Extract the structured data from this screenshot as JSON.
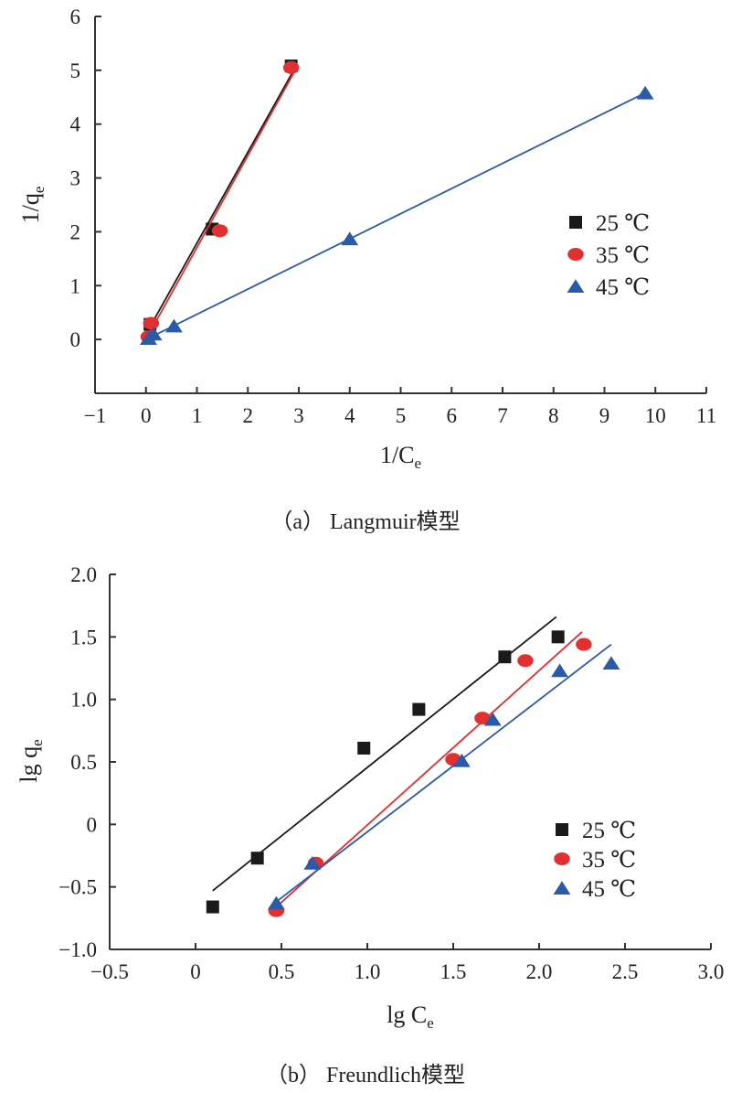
{
  "chart_data": [
    {
      "type": "scatter",
      "caption": "（a） Langmuir模型",
      "xlabel": "1/C",
      "xlabel_sub": "e",
      "ylabel": "1/q",
      "ylabel_sub": "e",
      "xlim": [
        -1,
        11
      ],
      "ylim": [
        -1,
        6
      ],
      "xticks": [
        -1,
        0,
        1,
        2,
        3,
        4,
        5,
        6,
        7,
        8,
        9,
        10,
        11
      ],
      "xtick_labels": [
        "−1",
        "0",
        "1",
        "2",
        "3",
        "4",
        "5",
        "6",
        "7",
        "8",
        "9",
        "10",
        "11"
      ],
      "yticks": [
        0,
        1,
        2,
        3,
        4,
        5,
        6
      ],
      "ytick_labels": [
        "0",
        "1",
        "2",
        "3",
        "4",
        "5",
        "6"
      ],
      "legend_position": "right",
      "grid": false,
      "series": [
        {
          "name": "25 ℃",
          "marker": "square",
          "color": "#1a1a1a",
          "x": [
            0.08,
            1.3,
            2.85
          ],
          "y": [
            0.28,
            2.05,
            5.08
          ],
          "fit": [
            [
              0,
              0.1
            ],
            [
              2.9,
              5.0
            ]
          ]
        },
        {
          "name": "35 ℃",
          "marker": "circle",
          "color": "#e03030",
          "x": [
            0.05,
            0.1,
            1.45,
            2.85
          ],
          "y": [
            0.05,
            0.3,
            2.02,
            5.05
          ],
          "fit": [
            [
              0,
              0.0
            ],
            [
              2.9,
              4.95
            ]
          ]
        },
        {
          "name": "45 ℃",
          "marker": "triangle",
          "color": "#2b5aa8",
          "x": [
            0.05,
            0.15,
            0.55,
            4.0,
            9.8
          ],
          "y": [
            0.02,
            0.1,
            0.25,
            1.87,
            4.58
          ],
          "fit": [
            [
              0,
              0.0
            ],
            [
              9.8,
              4.58
            ]
          ]
        }
      ]
    },
    {
      "type": "scatter",
      "caption": "（b） Freundlich模型",
      "xlabel": "lg C",
      "xlabel_sub": "e",
      "ylabel": "lg q",
      "ylabel_sub": "e",
      "xlim": [
        -0.5,
        3.0
      ],
      "ylim": [
        -1.0,
        2.0
      ],
      "xticks": [
        -0.5,
        0,
        0.5,
        1.0,
        1.5,
        2.0,
        2.5,
        3.0
      ],
      "xtick_labels": [
        "−0.5",
        "0",
        "0.5",
        "1.0",
        "1.5",
        "2.0",
        "2.5",
        "3.0"
      ],
      "yticks": [
        -1.0,
        -0.5,
        0,
        0.5,
        1.0,
        1.5,
        2.0
      ],
      "ytick_labels": [
        "−1.0",
        "−0.5",
        "0",
        "0.5",
        "1.0",
        "1.5",
        "2.0"
      ],
      "legend_position": "lower-right",
      "grid": false,
      "series": [
        {
          "name": "25 ℃",
          "marker": "square",
          "color": "#1a1a1a",
          "x": [
            0.1,
            0.36,
            0.98,
            1.3,
            1.8,
            2.11
          ],
          "y": [
            -0.66,
            -0.27,
            0.61,
            0.92,
            1.34,
            1.5
          ],
          "fit": [
            [
              0.1,
              -0.53
            ],
            [
              2.1,
              1.66
            ]
          ]
        },
        {
          "name": "35 ℃",
          "marker": "circle",
          "color": "#e03030",
          "x": [
            0.47,
            0.7,
            1.5,
            1.67,
            1.92,
            2.26
          ],
          "y": [
            -0.69,
            -0.31,
            0.52,
            0.85,
            1.31,
            1.44
          ],
          "fit": [
            [
              0.47,
              -0.66
            ],
            [
              2.25,
              1.54
            ]
          ]
        },
        {
          "name": "45 ℃",
          "marker": "triangle",
          "color": "#2b5aa8",
          "x": [
            0.47,
            0.68,
            1.55,
            1.73,
            2.12,
            2.42
          ],
          "y": [
            -0.63,
            -0.31,
            0.51,
            0.84,
            1.23,
            1.29
          ],
          "fit": [
            [
              0.45,
              -0.64
            ],
            [
              2.42,
              1.44
            ]
          ]
        }
      ]
    }
  ]
}
